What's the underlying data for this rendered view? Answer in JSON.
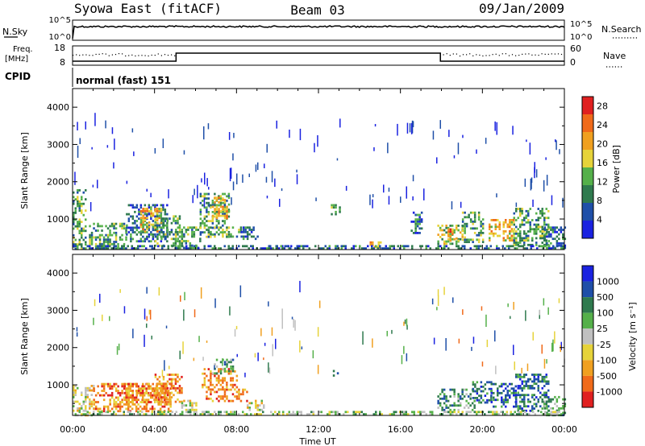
{
  "header": {
    "station": "Syowa East (fitACF)",
    "beam": "Beam 03",
    "date": "09/Jan/2009"
  },
  "labels": {
    "nsky": "N.Sky",
    "nsearch": "N.Search",
    "freq_line1": "Freq.",
    "freq_line2": "[MHz]",
    "nave": "Nave",
    "cpid": "CPID",
    "cpid_value": "normal (fast) 151",
    "noise_top_left": "10^5",
    "noise_bottom_left": "10^0",
    "noise_top_right": "10^5",
    "noise_bottom_right": "10^0",
    "freq_top": "18",
    "freq_bottom": "8",
    "nave_top": "60",
    "nave_bottom": "0",
    "power_cbar_label": "Power [dB]",
    "velocity_cbar_label": "Velocity [m s⁻¹]"
  },
  "chart_data": [
    {
      "type": "heatmap",
      "name": "power",
      "xlabel": "",
      "ylabel": "Slant Range [km]",
      "x_ticks": [
        "00:00",
        "04:00",
        "08:00",
        "12:00",
        "16:00",
        "20:00",
        "00:00"
      ],
      "x_hours": [
        0,
        4,
        8,
        12,
        16,
        20,
        24
      ],
      "xlim": [
        0,
        24
      ],
      "y_ticks": [
        1000,
        2000,
        3000,
        4000
      ],
      "ylim": [
        180,
        4500
      ],
      "colorbar": {
        "label": "Power [dB]",
        "ticks": [
          4,
          8,
          12,
          16,
          20,
          24,
          28
        ],
        "range": [
          0,
          30
        ],
        "colors": [
          "#1a22e0",
          "#1f4fa8",
          "#2f7a4e",
          "#55b04a",
          "#e6d33a",
          "#f0a020",
          "#f06a1a",
          "#e02020"
        ]
      },
      "regions": [
        {
          "t": [
            0.0,
            0.6
          ],
          "r": [
            200,
            1800
          ],
          "v": 12
        },
        {
          "t": [
            0.8,
            2.6
          ],
          "r": [
            200,
            900
          ],
          "v": 14
        },
        {
          "t": [
            2.6,
            4.6
          ],
          "r": [
            400,
            1400
          ],
          "v": 10
        },
        {
          "t": [
            3.3,
            4.3
          ],
          "r": [
            650,
            1300
          ],
          "v": 20
        },
        {
          "t": [
            4.0,
            5.2
          ],
          "r": [
            300,
            1100
          ],
          "v": 14
        },
        {
          "t": [
            5.0,
            6.2
          ],
          "r": [
            250,
            800
          ],
          "v": 12
        },
        {
          "t": [
            6.2,
            7.6
          ],
          "r": [
            550,
            1700
          ],
          "v": 12
        },
        {
          "t": [
            6.8,
            7.6
          ],
          "r": [
            1000,
            1600
          ],
          "v": 22
        },
        {
          "t": [
            6.5,
            8.2
          ],
          "r": [
            500,
            800
          ],
          "v": 14
        },
        {
          "t": [
            8.2,
            9.0
          ],
          "r": [
            450,
            800
          ],
          "v": 8
        },
        {
          "t": [
            9.5,
            10.6
          ],
          "r": [
            200,
            300
          ],
          "v": 10
        },
        {
          "t": [
            12.6,
            13.0
          ],
          "r": [
            1100,
            1400
          ],
          "v": 12
        },
        {
          "t": [
            14.4,
            15.0
          ],
          "r": [
            250,
            400
          ],
          "v": 20
        },
        {
          "t": [
            16.5,
            17.0
          ],
          "r": [
            600,
            1200
          ],
          "v": 8
        },
        {
          "t": [
            17.8,
            19.0
          ],
          "r": [
            350,
            850
          ],
          "v": 18
        },
        {
          "t": [
            18.3,
            18.8
          ],
          "r": [
            400,
            750
          ],
          "v": 26
        },
        {
          "t": [
            19.0,
            20.0
          ],
          "r": [
            400,
            1200
          ],
          "v": 14
        },
        {
          "t": [
            20.3,
            21.5
          ],
          "r": [
            400,
            1000
          ],
          "v": 20
        },
        {
          "t": [
            21.5,
            23.2
          ],
          "r": [
            300,
            1300
          ],
          "v": 12
        },
        {
          "t": [
            23.0,
            24.0
          ],
          "r": [
            200,
            800
          ],
          "v": 10
        }
      ],
      "near_range_band": {
        "r": [
          180,
          300
        ],
        "v": 8
      }
    },
    {
      "type": "heatmap",
      "name": "velocity",
      "xlabel": "Time UT",
      "ylabel": "Slant Range [km]",
      "x_ticks": [
        "00:00",
        "04:00",
        "08:00",
        "12:00",
        "16:00",
        "20:00",
        "00:00"
      ],
      "x_hours": [
        0,
        4,
        8,
        12,
        16,
        20,
        24
      ],
      "xlim": [
        0,
        24
      ],
      "y_ticks": [
        1000,
        2000,
        3000,
        4000
      ],
      "ylim": [
        180,
        4500
      ],
      "colorbar": {
        "label": "Velocity [m s⁻¹]",
        "ticks": [
          "1000",
          "500",
          "100",
          "25",
          "-25",
          "-100",
          "-500",
          "-1000"
        ],
        "colors": [
          "#1a22e0",
          "#1f4fa8",
          "#2f7a4e",
          "#55b04a",
          "#c0c0c0",
          "#e6d33a",
          "#f0a020",
          "#f06a1a",
          "#e02020"
        ]
      },
      "regions": [
        {
          "t": [
            0.0,
            1.0
          ],
          "r": [
            200,
            1000
          ],
          "v": 5
        },
        {
          "t": [
            1.0,
            4.8
          ],
          "r": [
            300,
            1050
          ],
          "v": 7
        },
        {
          "t": [
            2.5,
            4.5
          ],
          "r": [
            500,
            1050
          ],
          "v": 7
        },
        {
          "t": [
            4.0,
            5.3
          ],
          "r": [
            550,
            1300
          ],
          "v": 7
        },
        {
          "t": [
            5.3,
            6.0
          ],
          "r": [
            250,
            600
          ],
          "v": 5
        },
        {
          "t": [
            6.3,
            8.0
          ],
          "r": [
            900,
            1450
          ],
          "v": 7
        },
        {
          "t": [
            6.8,
            7.8
          ],
          "r": [
            1300,
            1700
          ],
          "v": 3
        },
        {
          "t": [
            6.5,
            8.5
          ],
          "r": [
            550,
            900
          ],
          "v": 7
        },
        {
          "t": [
            8.5,
            9.3
          ],
          "r": [
            300,
            600
          ],
          "v": 5
        },
        {
          "t": [
            12.7,
            12.9
          ],
          "r": [
            1250,
            1400
          ],
          "v": 2
        },
        {
          "t": [
            17.8,
            19.6
          ],
          "r": [
            350,
            900
          ],
          "v": 3
        },
        {
          "t": [
            19.5,
            20.4
          ],
          "r": [
            500,
            1100
          ],
          "v": 2
        },
        {
          "t": [
            20.4,
            21.6
          ],
          "r": [
            400,
            1050
          ],
          "v": 2
        },
        {
          "t": [
            21.6,
            23.2
          ],
          "r": [
            300,
            1300
          ],
          "v": 2
        },
        {
          "t": [
            23.0,
            24.0
          ],
          "r": [
            200,
            700
          ],
          "v": 3
        }
      ],
      "near_range_band": {
        "r": [
          180,
          300
        ],
        "v": 4
      }
    }
  ]
}
